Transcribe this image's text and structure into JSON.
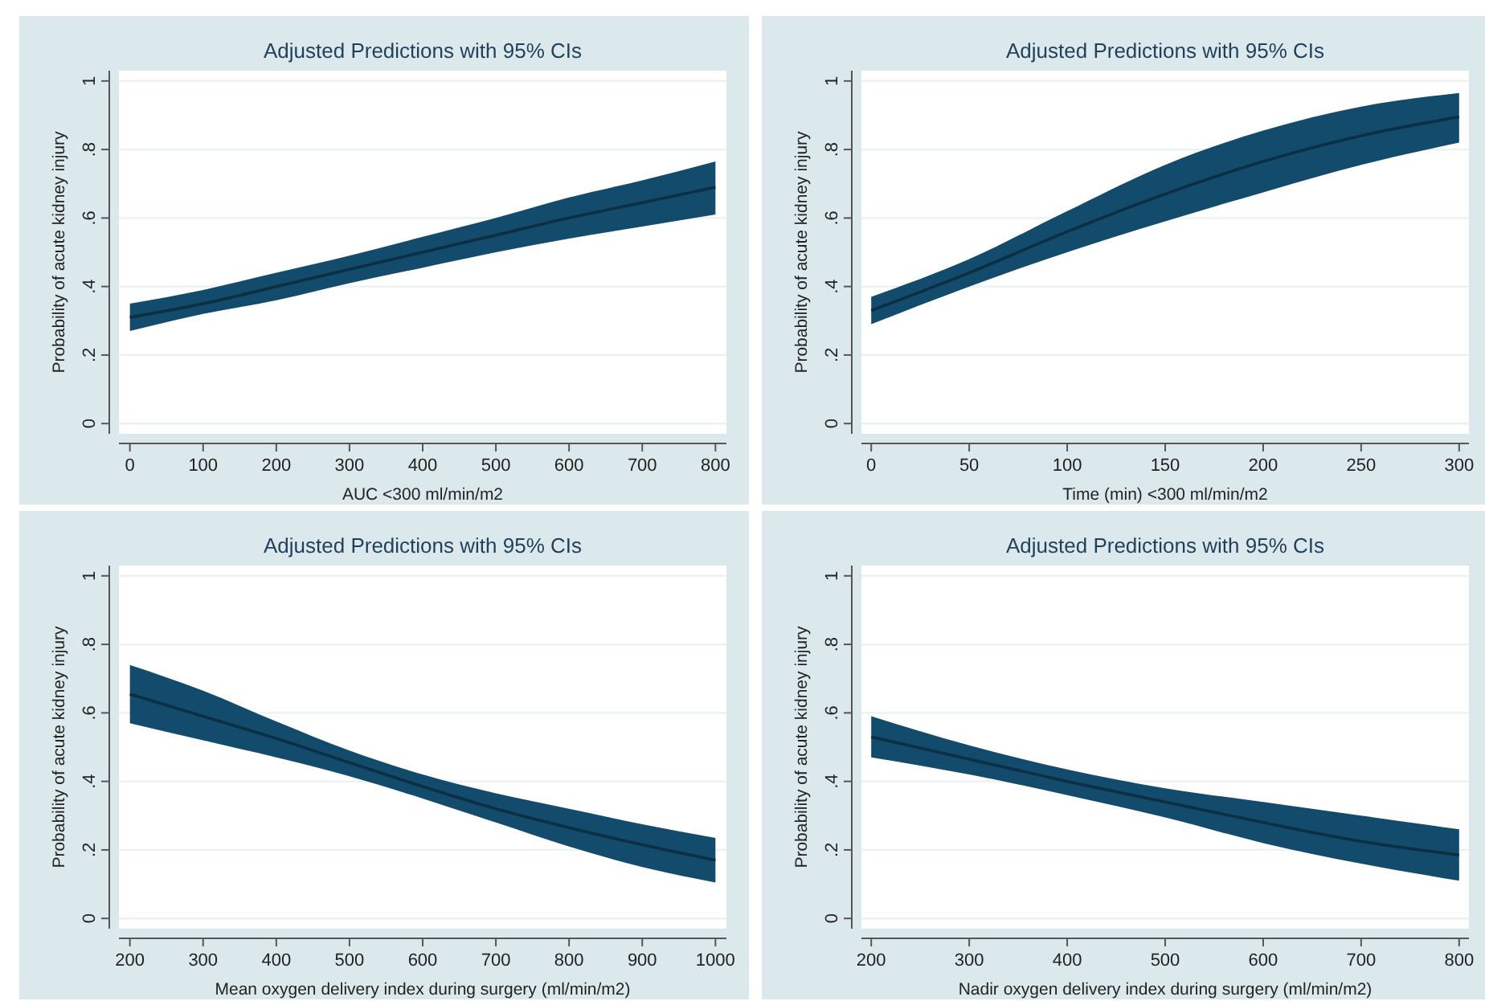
{
  "chart_data": [
    {
      "type": "line",
      "title": "Adjusted Predictions with 95% CIs",
      "xlabel": "AUC <300 ml/min/m2",
      "ylabel": "Probability of acute kidney injury",
      "xlim": [
        -15,
        815
      ],
      "xticks": [
        0,
        100,
        200,
        300,
        400,
        500,
        600,
        700,
        800
      ],
      "ylim": [
        -0.03,
        1.03
      ],
      "yticks": [
        {
          "value": 0,
          "label": "0"
        },
        {
          "value": 0.2,
          "label": ".2"
        },
        {
          "value": 0.4,
          "label": ".4"
        },
        {
          "value": 0.6,
          "label": ".6"
        },
        {
          "value": 0.8,
          "label": ".8"
        },
        {
          "value": 1,
          "label": "1"
        }
      ],
      "grid": "y",
      "series": [
        {
          "color": "#0c2f44",
          "x": [
            0,
            100,
            200,
            300,
            400,
            500,
            600,
            700,
            800
          ],
          "values": [
            0.31,
            0.35,
            0.4,
            0.45,
            0.5,
            0.55,
            0.6,
            0.645,
            0.69
          ],
          "lower": [
            0.27,
            0.32,
            0.36,
            0.41,
            0.455,
            0.5,
            0.54,
            0.575,
            0.61
          ],
          "upper": [
            0.35,
            0.39,
            0.44,
            0.49,
            0.545,
            0.6,
            0.66,
            0.71,
            0.765
          ]
        }
      ]
    },
    {
      "type": "line",
      "title": "Adjusted Predictions with 95% CIs",
      "xlabel": "Time (min) <300 ml/min/m2",
      "ylabel": "Probability of acute kidney injury",
      "xlim": [
        -5,
        305
      ],
      "xticks": [
        0,
        50,
        100,
        150,
        200,
        250,
        300
      ],
      "ylim": [
        -0.03,
        1.03
      ],
      "yticks": [
        {
          "value": 0,
          "label": "0"
        },
        {
          "value": 0.2,
          "label": ".2"
        },
        {
          "value": 0.4,
          "label": ".4"
        },
        {
          "value": 0.6,
          "label": ".6"
        },
        {
          "value": 0.8,
          "label": ".8"
        },
        {
          "value": 1,
          "label": "1"
        }
      ],
      "grid": "y",
      "series": [
        {
          "color": "#0c2f44",
          "x": [
            0,
            50,
            100,
            150,
            200,
            250,
            300
          ],
          "values": [
            0.33,
            0.44,
            0.56,
            0.67,
            0.765,
            0.84,
            0.895
          ],
          "lower": [
            0.29,
            0.4,
            0.5,
            0.59,
            0.675,
            0.755,
            0.82
          ],
          "upper": [
            0.37,
            0.48,
            0.62,
            0.755,
            0.855,
            0.925,
            0.965
          ]
        }
      ]
    },
    {
      "type": "line",
      "title": "Adjusted Predictions with 95% CIs",
      "xlabel": "Mean oxygen delivery index during surgery (ml/min/m2)",
      "ylabel": "Probability of acute kidney injury",
      "xlim": [
        185,
        1015
      ],
      "xticks": [
        200,
        300,
        400,
        500,
        600,
        700,
        800,
        900,
        1000
      ],
      "ylim": [
        -0.03,
        1.03
      ],
      "yticks": [
        {
          "value": 0,
          "label": "0"
        },
        {
          "value": 0.2,
          "label": ".2"
        },
        {
          "value": 0.4,
          "label": ".4"
        },
        {
          "value": 0.6,
          "label": ".6"
        },
        {
          "value": 0.8,
          "label": ".8"
        },
        {
          "value": 1,
          "label": "1"
        }
      ],
      "grid": "y",
      "series": [
        {
          "color": "#0c2f44",
          "x": [
            200,
            300,
            400,
            500,
            600,
            700,
            800,
            900,
            1000
          ],
          "values": [
            0.655,
            0.59,
            0.525,
            0.455,
            0.385,
            0.32,
            0.265,
            0.215,
            0.17
          ],
          "lower": [
            0.57,
            0.52,
            0.47,
            0.415,
            0.35,
            0.28,
            0.21,
            0.15,
            0.105
          ],
          "upper": [
            0.74,
            0.665,
            0.575,
            0.49,
            0.42,
            0.365,
            0.32,
            0.275,
            0.235
          ]
        }
      ]
    },
    {
      "type": "line",
      "title": "Adjusted Predictions with 95% CIs",
      "xlabel": "Nadir oxygen delivery index during surgery (ml/min/m2)",
      "ylabel": "Probability of acute kidney injury",
      "xlim": [
        190,
        810
      ],
      "xticks": [
        200,
        300,
        400,
        500,
        600,
        700,
        800
      ],
      "ylim": [
        -0.03,
        1.03
      ],
      "yticks": [
        {
          "value": 0,
          "label": "0"
        },
        {
          "value": 0.2,
          "label": ".2"
        },
        {
          "value": 0.4,
          "label": ".4"
        },
        {
          "value": 0.6,
          "label": ".6"
        },
        {
          "value": 0.8,
          "label": ".8"
        },
        {
          "value": 1,
          "label": "1"
        }
      ],
      "grid": "y",
      "series": [
        {
          "color": "#0c2f44",
          "x": [
            200,
            300,
            400,
            500,
            600,
            700,
            800
          ],
          "values": [
            0.53,
            0.465,
            0.4,
            0.34,
            0.28,
            0.225,
            0.185
          ],
          "lower": [
            0.47,
            0.42,
            0.36,
            0.295,
            0.22,
            0.16,
            0.11
          ],
          "upper": [
            0.59,
            0.505,
            0.435,
            0.38,
            0.34,
            0.3,
            0.26
          ]
        }
      ]
    }
  ]
}
